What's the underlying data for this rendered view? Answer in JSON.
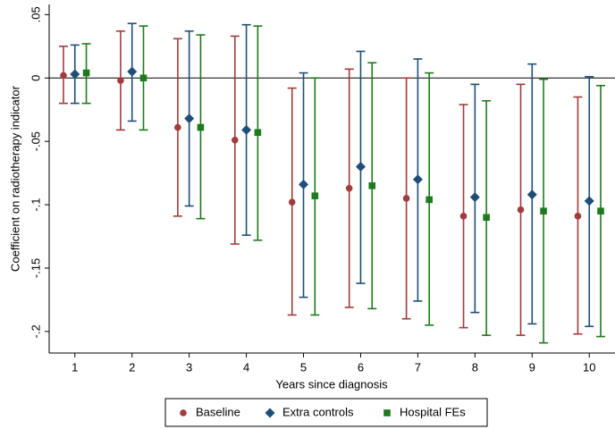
{
  "chart_data": {
    "type": "errorbar",
    "y_label": "Coefficient on radiotherapy indicator",
    "x_label": "Years since diagnosis",
    "x": [
      1,
      2,
      3,
      4,
      5,
      6,
      7,
      8,
      9,
      10
    ],
    "xlim": [
      0.55,
      10.45
    ],
    "xticks": [
      1,
      2,
      3,
      4,
      5,
      6,
      7,
      8,
      9,
      10
    ],
    "ylim": [
      -0.217,
      0.058
    ],
    "yticks": [
      {
        "value": 0.05,
        "label": ".05"
      },
      0,
      {
        "value": -0.05,
        "label": "-.05"
      },
      {
        "value": -0.1,
        "label": "-.1"
      },
      {
        "value": -0.15,
        "label": "-.15"
      },
      {
        "value": -0.2,
        "label": "-.2"
      }
    ],
    "reference_line": 0,
    "legend": "bottom",
    "series": [
      {
        "name": "Baseline",
        "color": "#a23b3b",
        "marker": "circle",
        "values": [
          0.002,
          -0.002,
          -0.039,
          -0.049,
          -0.098,
          -0.087,
          -0.095,
          -0.109,
          -0.104,
          -0.109
        ],
        "lower": [
          -0.02,
          -0.041,
          -0.109,
          -0.131,
          -0.187,
          -0.181,
          -0.19,
          -0.197,
          -0.203,
          -0.202
        ],
        "upper": [
          0.025,
          0.037,
          0.031,
          0.033,
          -0.008,
          0.007,
          0.0,
          -0.021,
          -0.005,
          -0.015
        ]
      },
      {
        "name": "Extra controls",
        "color": "#1f4e79",
        "marker": "diamond",
        "values": [
          0.003,
          0.005,
          -0.032,
          -0.041,
          -0.084,
          -0.07,
          -0.08,
          -0.094,
          -0.092,
          -0.097
        ],
        "lower": [
          -0.02,
          -0.034,
          -0.101,
          -0.124,
          -0.173,
          -0.162,
          -0.176,
          -0.185,
          -0.194,
          -0.196
        ],
        "upper": [
          0.026,
          0.043,
          0.037,
          0.042,
          0.004,
          0.021,
          0.015,
          -0.005,
          0.011,
          0.001
        ]
      },
      {
        "name": "Hospital FEs",
        "color": "#1e7a1e",
        "marker": "square",
        "values": [
          0.004,
          0.0,
          -0.039,
          -0.043,
          -0.093,
          -0.085,
          -0.096,
          -0.11,
          -0.105,
          -0.105
        ],
        "lower": [
          -0.02,
          -0.041,
          -0.111,
          -0.128,
          -0.187,
          -0.182,
          -0.195,
          -0.203,
          -0.209,
          -0.204
        ],
        "upper": [
          0.027,
          0.041,
          0.034,
          0.041,
          0.0,
          0.012,
          0.004,
          -0.018,
          -0.001,
          -0.006
        ]
      }
    ]
  }
}
